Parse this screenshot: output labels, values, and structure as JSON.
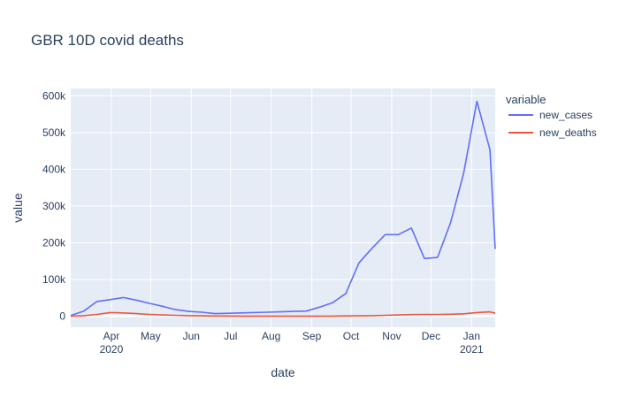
{
  "chart_data": {
    "type": "line",
    "title": "GBR 10D covid deaths",
    "xlabel": "date",
    "ylabel": "value",
    "legend_title": "variable",
    "legend_position": "right",
    "grid": true,
    "x_range": [
      "2020-03-01",
      "2021-01-19"
    ],
    "ylim": [
      -30000,
      620000
    ],
    "y_ticks": [
      0,
      100000,
      200000,
      300000,
      400000,
      500000,
      600000
    ],
    "y_tick_labels": [
      "0",
      "100k",
      "200k",
      "300k",
      "400k",
      "500k",
      "600k"
    ],
    "x_ticks": [
      {
        "date": "2020-04-01",
        "label": "Apr",
        "sublabel": "2020"
      },
      {
        "date": "2020-05-01",
        "label": "May",
        "sublabel": ""
      },
      {
        "date": "2020-06-01",
        "label": "Jun",
        "sublabel": ""
      },
      {
        "date": "2020-07-01",
        "label": "Jul",
        "sublabel": ""
      },
      {
        "date": "2020-08-01",
        "label": "Aug",
        "sublabel": ""
      },
      {
        "date": "2020-09-01",
        "label": "Sep",
        "sublabel": ""
      },
      {
        "date": "2020-10-01",
        "label": "Oct",
        "sublabel": ""
      },
      {
        "date": "2020-11-01",
        "label": "Nov",
        "sublabel": ""
      },
      {
        "date": "2020-12-01",
        "label": "Dec",
        "sublabel": ""
      },
      {
        "date": "2021-01-01",
        "label": "Jan",
        "sublabel": "2021"
      }
    ],
    "x": [
      "2020-03-01",
      "2020-03-11",
      "2020-03-21",
      "2020-03-31",
      "2020-04-10",
      "2020-04-20",
      "2020-04-30",
      "2020-05-10",
      "2020-05-20",
      "2020-05-30",
      "2020-06-09",
      "2020-06-19",
      "2020-06-29",
      "2020-07-09",
      "2020-07-19",
      "2020-07-29",
      "2020-08-08",
      "2020-08-18",
      "2020-08-28",
      "2020-09-07",
      "2020-09-17",
      "2020-09-27",
      "2020-10-07",
      "2020-10-17",
      "2020-10-27",
      "2020-11-06",
      "2020-11-16",
      "2020-11-26",
      "2020-12-06",
      "2020-12-16",
      "2020-12-26",
      "2021-01-05",
      "2021-01-15",
      "2021-01-19"
    ],
    "series": [
      {
        "name": "new_cases",
        "color": "#636efa",
        "values": [
          2000,
          14000,
          40000,
          45000,
          51000,
          44000,
          35000,
          27000,
          18000,
          13000,
          11000,
          7000,
          8000,
          9000,
          10000,
          11000,
          12000,
          13000,
          14000,
          25000,
          37000,
          62000,
          145000,
          185000,
          222000,
          222000,
          240000,
          157000,
          160000,
          255000,
          390000,
          585000,
          453000,
          183000
        ]
      },
      {
        "name": "new_deaths",
        "color": "#ef553b",
        "values": [
          100,
          1500,
          5000,
          10000,
          9000,
          7000,
          5000,
          3500,
          2500,
          1500,
          1000,
          600,
          500,
          400,
          300,
          300,
          300,
          300,
          300,
          300,
          400,
          800,
          1000,
          1500,
          2500,
          3500,
          4500,
          5000,
          5000,
          5500,
          6500,
          10000,
          12000,
          8000
        ]
      }
    ]
  }
}
